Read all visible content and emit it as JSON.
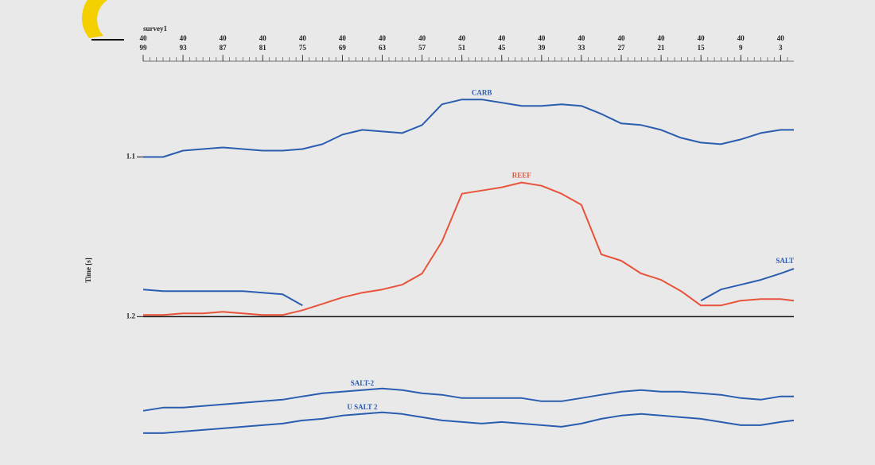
{
  "chart_data": {
    "type": "line",
    "title": "survey1",
    "ylabel": "Time [s]",
    "xlim": [
      99,
      1
    ],
    "xticks": [
      99,
      93,
      87,
      81,
      75,
      69,
      63,
      57,
      51,
      45,
      39,
      33,
      27,
      21,
      15,
      9,
      3
    ],
    "xtick_upper_labels": [
      "40",
      "40",
      "40",
      "40",
      "40",
      "40",
      "40",
      "40",
      "40",
      "40",
      "40",
      "40",
      "40",
      "40",
      "40",
      "40",
      "40"
    ],
    "ylim": [
      1.04,
      1.28
    ],
    "y_inverted": true,
    "yticks": [
      1.1,
      1.2
    ],
    "x": [
      99,
      96,
      93,
      90,
      87,
      84,
      81,
      78,
      75,
      72,
      69,
      66,
      63,
      60,
      57,
      54,
      51,
      48,
      45,
      42,
      39,
      36,
      33,
      30,
      27,
      24,
      21,
      18,
      15,
      12,
      9,
      6,
      3,
      1
    ],
    "series": [
      {
        "name": "CARB",
        "color": "#2a5db0",
        "values": [
          1.1,
          1.1,
          1.096,
          1.095,
          1.094,
          1.095,
          1.096,
          1.096,
          1.095,
          1.092,
          1.086,
          1.083,
          1.084,
          1.085,
          1.08,
          1.067,
          1.064,
          1.064,
          1.066,
          1.068,
          1.068,
          1.067,
          1.068,
          1.073,
          1.079,
          1.08,
          1.083,
          1.088,
          1.091,
          1.092,
          1.089,
          1.085,
          1.083,
          1.083
        ]
      },
      {
        "name": "REEF",
        "color": "#e8533a",
        "values": [
          1.199,
          1.199,
          1.198,
          1.198,
          1.197,
          1.198,
          1.199,
          1.199,
          1.196,
          1.192,
          1.188,
          1.185,
          1.183,
          1.18,
          1.173,
          1.153,
          1.123,
          1.121,
          1.119,
          1.116,
          1.118,
          1.123,
          1.13,
          1.161,
          1.165,
          1.173,
          1.177,
          1.184,
          1.193,
          1.193,
          1.19,
          1.189,
          1.189,
          1.19
        ]
      },
      {
        "name": "SALT",
        "color": "#2a5db0",
        "values": [
          1.183,
          1.184,
          1.184,
          1.184,
          1.184,
          1.184,
          1.185,
          1.186,
          1.193,
          null,
          null,
          null,
          null,
          null,
          null,
          null,
          null,
          null,
          null,
          null,
          null,
          null,
          null,
          null,
          null,
          null,
          null,
          null,
          1.19,
          1.183,
          1.18,
          1.177,
          1.173,
          1.17
        ]
      },
      {
        "name": "SALT-2",
        "color": "#2a5db0",
        "values": [
          1.259,
          1.257,
          1.257,
          1.256,
          1.255,
          1.254,
          1.253,
          1.252,
          1.25,
          1.248,
          1.247,
          1.246,
          1.245,
          1.246,
          1.248,
          1.249,
          1.251,
          1.251,
          1.251,
          1.251,
          1.253,
          1.253,
          1.251,
          1.249,
          1.247,
          1.246,
          1.247,
          1.247,
          1.248,
          1.249,
          1.251,
          1.252,
          1.25,
          1.25
        ]
      },
      {
        "name": "U SALT 2",
        "color": "#2a5db0",
        "values": [
          1.273,
          1.273,
          1.272,
          1.271,
          1.27,
          1.269,
          1.268,
          1.267,
          1.265,
          1.264,
          1.262,
          1.261,
          1.26,
          1.261,
          1.263,
          1.265,
          1.266,
          1.267,
          1.266,
          1.267,
          1.268,
          1.269,
          1.267,
          1.264,
          1.262,
          1.261,
          1.262,
          1.263,
          1.264,
          1.266,
          1.268,
          1.268,
          1.266,
          1.265
        ]
      }
    ]
  }
}
